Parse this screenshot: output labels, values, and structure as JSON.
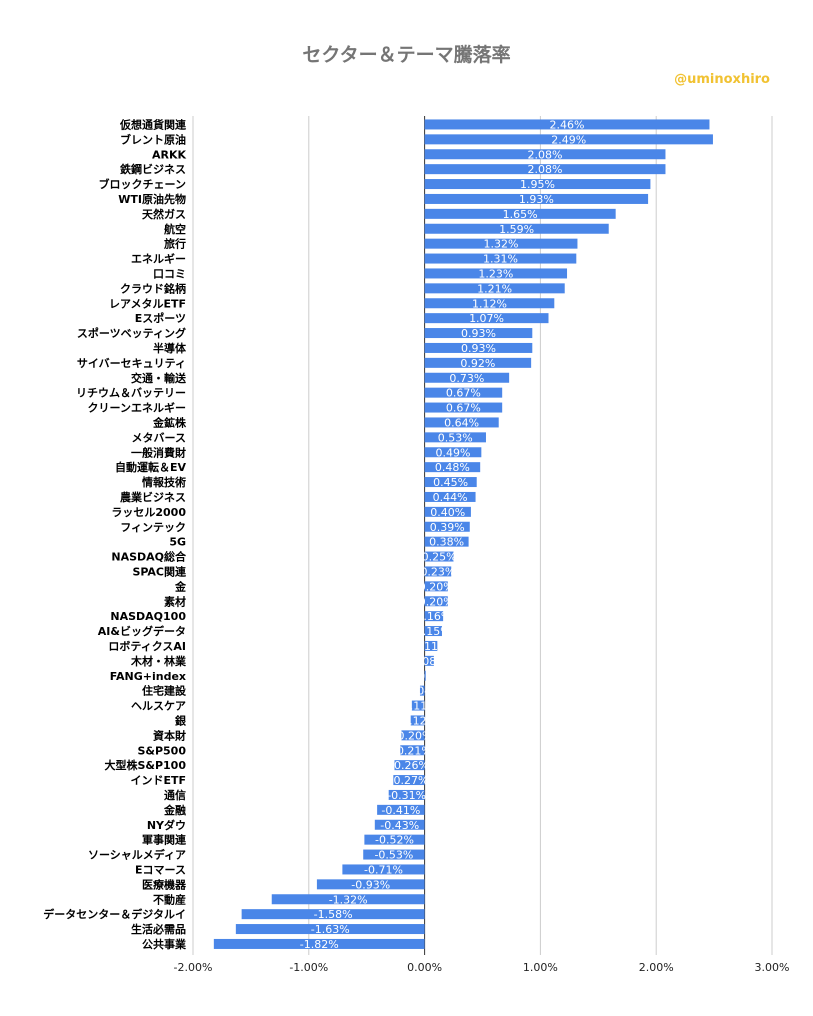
{
  "chart_data": {
    "type": "bar",
    "orientation": "horizontal",
    "title": "セクター＆テーマ騰落率",
    "annotation": "@uminoxhiro",
    "categories": [
      "仮想通貨関連",
      "ブレント原油",
      "ARKK",
      "鉄鋼ビジネス",
      "ブロックチェーン",
      "WTI原油先物",
      "天然ガス",
      "航空",
      "旅行",
      "エネルギー",
      "口コミ",
      "クラウド銘柄",
      "レアメタルETF",
      "Eスポーツ",
      "スポーツベッティング",
      "半導体",
      "サイバーセキュリティ",
      "交通・輸送",
      "リチウム＆バッテリー",
      "クリーンエネルギー",
      "金鉱株",
      "メタバース",
      "一般消費財",
      "自動運転＆EV",
      "情報技術",
      "農業ビジネス",
      "ラッセル2000",
      "フィンテック",
      "5G",
      "NASDAQ総合",
      "SPAC関連",
      "金",
      "素材",
      "NASDAQ100",
      "AI&ビッグデータ",
      "ロボティクスAI",
      "木材・林業",
      "FANG+index",
      "住宅建設",
      "ヘルスケア",
      "銀",
      "資本財",
      "S&P500",
      "大型株S&P100",
      "インドETF",
      "通信",
      "金融",
      "NYダウ",
      "軍事関連",
      "ソーシャルメディア",
      "Eコマース",
      "医療機器",
      "不動産",
      "データセンター＆デジタルイ",
      "生活必需品",
      "公共事業"
    ],
    "values": [
      2.46,
      2.49,
      2.08,
      2.08,
      1.95,
      1.93,
      1.65,
      1.59,
      1.32,
      1.31,
      1.23,
      1.21,
      1.12,
      1.07,
      0.93,
      0.93,
      0.92,
      0.73,
      0.67,
      0.67,
      0.64,
      0.53,
      0.49,
      0.48,
      0.45,
      0.44,
      0.4,
      0.39,
      0.38,
      0.25,
      0.23,
      0.2,
      0.2,
      0.16,
      0.15,
      0.11,
      0.08,
      0.01,
      -0.04,
      -0.11,
      -0.12,
      -0.2,
      -0.21,
      -0.26,
      -0.27,
      -0.31,
      -0.41,
      -0.43,
      -0.52,
      -0.53,
      -0.71,
      -0.93,
      -1.32,
      -1.58,
      -1.63,
      -1.82
    ],
    "value_labels": [
      "2.46%",
      "2.49%",
      "2.08%",
      "2.08%",
      "1.95%",
      "1.93%",
      "1.65%",
      "1.59%",
      "1.32%",
      "1.31%",
      "1.23%",
      "1.21%",
      "1.12%",
      "1.07%",
      "0.93%",
      "0.93%",
      "0.92%",
      "0.73%",
      "0.67%",
      "0.67%",
      "0.64%",
      "0.53%",
      "0.49%",
      "0.48%",
      "0.45%",
      "0.44%",
      "0.40%",
      "0.39%",
      "0.38%",
      "0.25%",
      "0.23%",
      "0.20%",
      "0.20%",
      "0.16%",
      "0.15%",
      "0.11%",
      "0.08%",
      "0.01%",
      "-0.04%",
      "-0.11%",
      "-0.12%",
      "-0.20%",
      "-0.21%",
      "-0.26%",
      "-0.27%",
      "-0.31%",
      "-0.41%",
      "-0.43%",
      "-0.52%",
      "-0.53%",
      "-0.71%",
      "-0.93%",
      "-1.32%",
      "-1.58%",
      "-1.63%",
      "-1.82%"
    ],
    "xlim": [
      -2.0,
      3.0
    ],
    "x_ticks": [
      -2.0,
      -1.0,
      0.0,
      1.0,
      2.0,
      3.0
    ],
    "x_tick_labels": [
      "-2.00%",
      "-1.00%",
      "0.00%",
      "1.00%",
      "2.00%",
      "3.00%"
    ],
    "grid": true,
    "bar_color": "#4a86e8",
    "title_color": "#757575",
    "annotation_color": "#f1c232"
  }
}
